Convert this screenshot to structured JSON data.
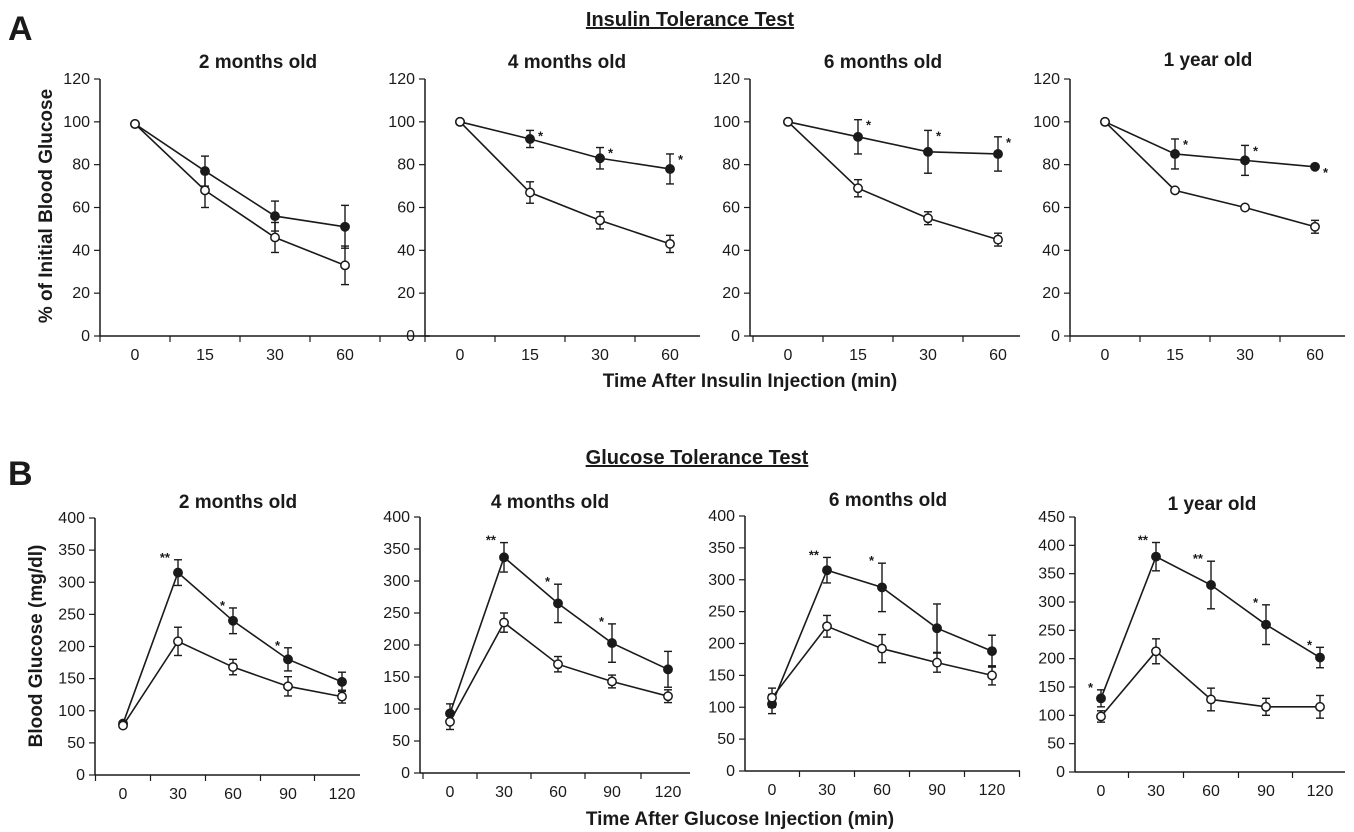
{
  "panels": [
    {
      "letter": "A",
      "title": "Insulin Tolerance Test",
      "ylabel": "% of Initial Blood Glucose",
      "xlabel": "Time After Insulin Injection (min)"
    },
    {
      "letter": "B",
      "title": "Glucose Tolerance Test",
      "ylabel": "Blood Glucose (mg/dl)",
      "xlabel": "Time After Glucose Injection (min)"
    }
  ],
  "chart_data": [
    {
      "type": "line",
      "panel": "A",
      "title": "2 months old",
      "x": [
        "0",
        "15",
        "30",
        "60"
      ],
      "ylim": [
        0,
        120
      ],
      "yticks": [
        0,
        20,
        40,
        60,
        80,
        100,
        120
      ],
      "series": [
        {
          "marker": "filled",
          "values": [
            99,
            77,
            56,
            51
          ],
          "errors": [
            0,
            7,
            7,
            10
          ],
          "significance": [
            "",
            "",
            "",
            ""
          ]
        },
        {
          "marker": "open",
          "values": [
            99,
            68,
            46,
            33
          ],
          "errors": [
            0,
            8,
            7,
            9
          ],
          "significance": [
            "",
            "",
            "",
            ""
          ]
        }
      ]
    },
    {
      "type": "line",
      "panel": "A",
      "title": "4 months old",
      "x": [
        "0",
        "15",
        "30",
        "60"
      ],
      "ylim": [
        0,
        120
      ],
      "yticks": [
        0,
        20,
        40,
        60,
        80,
        100,
        120
      ],
      "series": [
        {
          "marker": "filled",
          "values": [
            100,
            92,
            83,
            78
          ],
          "errors": [
            0,
            4,
            5,
            7
          ],
          "significance": [
            "",
            "*",
            "*",
            "*"
          ]
        },
        {
          "marker": "open",
          "values": [
            100,
            67,
            54,
            43
          ],
          "errors": [
            0,
            5,
            4,
            4
          ],
          "significance": [
            "",
            "",
            "",
            ""
          ]
        }
      ]
    },
    {
      "type": "line",
      "panel": "A",
      "title": "6 months old",
      "x": [
        "0",
        "15",
        "30",
        "60"
      ],
      "ylim": [
        0,
        120
      ],
      "yticks": [
        0,
        20,
        40,
        60,
        80,
        100,
        120
      ],
      "series": [
        {
          "marker": "filled",
          "values": [
            100,
            93,
            86,
            85
          ],
          "errors": [
            0,
            8,
            10,
            8
          ],
          "significance": [
            "",
            "*",
            "*",
            "*"
          ]
        },
        {
          "marker": "open",
          "values": [
            100,
            69,
            55,
            45
          ],
          "errors": [
            0,
            4,
            3,
            3
          ],
          "significance": [
            "",
            "",
            "",
            ""
          ]
        }
      ]
    },
    {
      "type": "line",
      "panel": "A",
      "title": "1 year old",
      "x": [
        "0",
        "15",
        "30",
        "60"
      ],
      "ylim": [
        0,
        120
      ],
      "yticks": [
        0,
        20,
        40,
        60,
        80,
        100,
        120
      ],
      "series": [
        {
          "marker": "filled",
          "values": [
            100,
            85,
            82,
            79
          ],
          "errors": [
            0,
            7,
            7,
            0
          ],
          "significance": [
            "",
            "*",
            "*",
            "*"
          ]
        },
        {
          "marker": "open",
          "values": [
            100,
            68,
            60,
            51
          ],
          "errors": [
            0,
            0,
            0,
            3
          ],
          "significance": [
            "",
            "",
            "",
            ""
          ]
        }
      ]
    },
    {
      "type": "line",
      "panel": "B",
      "title": "2 months old",
      "x": [
        "0",
        "30",
        "60",
        "90",
        "120"
      ],
      "ylim": [
        0,
        400
      ],
      "yticks": [
        0,
        50,
        100,
        150,
        200,
        250,
        300,
        350,
        400
      ],
      "series": [
        {
          "marker": "filled",
          "values": [
            80,
            315,
            240,
            180,
            145
          ],
          "errors": [
            0,
            20,
            20,
            18,
            15
          ],
          "significance": [
            "",
            "**",
            "*",
            "*",
            ""
          ]
        },
        {
          "marker": "open",
          "values": [
            77,
            208,
            168,
            138,
            122
          ],
          "errors": [
            0,
            22,
            12,
            15,
            10
          ],
          "significance": [
            "",
            "",
            "",
            "",
            ""
          ]
        }
      ]
    },
    {
      "type": "line",
      "panel": "B",
      "title": "4 months old",
      "x": [
        "0",
        "30",
        "60",
        "90",
        "120"
      ],
      "ylim": [
        0,
        400
      ],
      "yticks": [
        0,
        50,
        100,
        150,
        200,
        250,
        300,
        350,
        400
      ],
      "series": [
        {
          "marker": "filled",
          "values": [
            93,
            337,
            265,
            203,
            162
          ],
          "errors": [
            15,
            23,
            30,
            30,
            28
          ],
          "significance": [
            "",
            "**",
            "*",
            "*",
            ""
          ]
        },
        {
          "marker": "open",
          "values": [
            80,
            235,
            170,
            143,
            120
          ],
          "errors": [
            12,
            15,
            12,
            10,
            10
          ],
          "significance": [
            "",
            "",
            "",
            "",
            ""
          ]
        }
      ]
    },
    {
      "type": "line",
      "panel": "B",
      "title": "6 months old",
      "x": [
        "0",
        "30",
        "60",
        "90",
        "120"
      ],
      "ylim": [
        0,
        400
      ],
      "yticks": [
        0,
        50,
        100,
        150,
        200,
        250,
        300,
        350,
        400
      ],
      "series": [
        {
          "marker": "filled",
          "values": [
            105,
            315,
            288,
            224,
            188
          ],
          "errors": [
            15,
            20,
            38,
            38,
            25
          ],
          "significance": [
            "",
            "**",
            "*",
            "",
            ""
          ]
        },
        {
          "marker": "open",
          "values": [
            115,
            227,
            192,
            170,
            150
          ],
          "errors": [
            15,
            17,
            22,
            15,
            15
          ],
          "significance": [
            "",
            "",
            "",
            "",
            ""
          ]
        }
      ]
    },
    {
      "type": "line",
      "panel": "B",
      "title": "1 year old",
      "x": [
        "0",
        "30",
        "60",
        "90",
        "120"
      ],
      "ylim": [
        0,
        450
      ],
      "yticks": [
        0,
        50,
        100,
        150,
        200,
        250,
        300,
        350,
        400,
        450
      ],
      "series": [
        {
          "marker": "filled",
          "values": [
            130,
            380,
            330,
            260,
            202
          ],
          "errors": [
            15,
            25,
            42,
            35,
            18
          ],
          "significance": [
            "*",
            "**",
            "**",
            "*",
            "*"
          ]
        },
        {
          "marker": "open",
          "values": [
            98,
            213,
            128,
            115,
            115
          ],
          "errors": [
            10,
            22,
            20,
            15,
            20
          ],
          "significance": [
            "",
            "",
            "",
            "",
            ""
          ]
        }
      ]
    }
  ]
}
